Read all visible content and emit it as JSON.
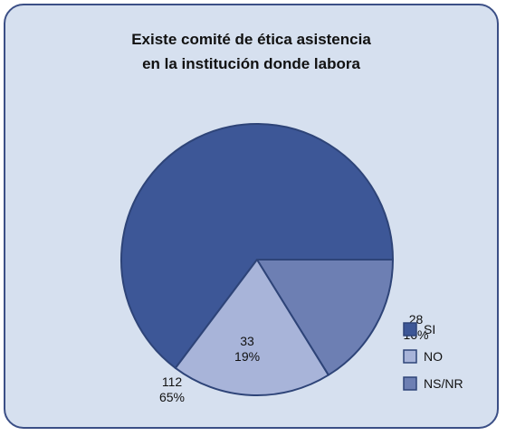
{
  "chart_data": {
    "type": "pie",
    "title_lines": [
      "Existe comité de ética asistencia",
      "en la institución donde labora"
    ],
    "categories": [
      "SI",
      "NO",
      "NS/NR"
    ],
    "values": [
      112,
      33,
      28
    ],
    "percent_labels": [
      "65%",
      "19%",
      "16%"
    ],
    "colors": [
      "#3d5797",
      "#a8b4d9",
      "#6d7fb3"
    ],
    "legend_position": "bottom-right",
    "start_angle_deg": 0,
    "direction": "counterclockwise"
  }
}
